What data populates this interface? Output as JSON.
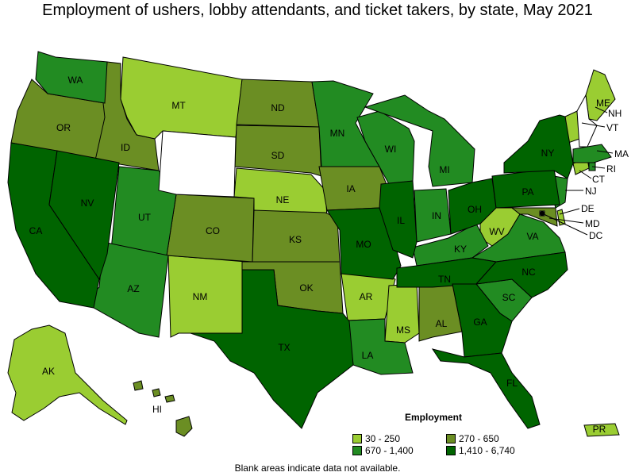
{
  "title": "Employment of ushers, lobby attendants, and ticket takers, by state, May 2021",
  "legend": {
    "title": "Employment",
    "items": [
      {
        "label": "30 - 250",
        "color": "#9ACD32"
      },
      {
        "label": "270 - 650",
        "color": "#6B8E23"
      },
      {
        "label": "670 - 1,400",
        "color": "#228B22"
      },
      {
        "label": "1,410 - 6,740",
        "color": "#006400"
      }
    ]
  },
  "note": "Blank areas indicate data not available.",
  "states": {
    "WA": "WA",
    "OR": "OR",
    "CA": "CA",
    "NV": "NV",
    "ID": "ID",
    "MT": "MT",
    "UT": "UT",
    "AZ": "AZ",
    "CO": "CO",
    "NM": "NM",
    "ND": "ND",
    "SD": "SD",
    "NE": "NE",
    "KS": "KS",
    "OK": "OK",
    "TX": "TX",
    "MN": "MN",
    "IA": "IA",
    "MO": "MO",
    "AR": "AR",
    "LA": "LA",
    "WI": "WI",
    "IL": "IL",
    "MS": "MS",
    "MI": "MI",
    "IN": "IN",
    "KY": "KY",
    "TN": "TN",
    "AL": "AL",
    "GA": "GA",
    "FL": "FL",
    "OH": "OH",
    "WV": "WV",
    "VA": "VA",
    "NC": "NC",
    "SC": "SC",
    "PA": "PA",
    "NY": "NY",
    "ME": "ME",
    "NH": "NH",
    "VT": "VT",
    "MA": "MA",
    "RI": "RI",
    "CT": "CT",
    "NJ": "NJ",
    "DE": "DE",
    "MD": "MD",
    "DC": "DC",
    "AK": "AK",
    "HI": "HI",
    "PR": "PR"
  }
}
